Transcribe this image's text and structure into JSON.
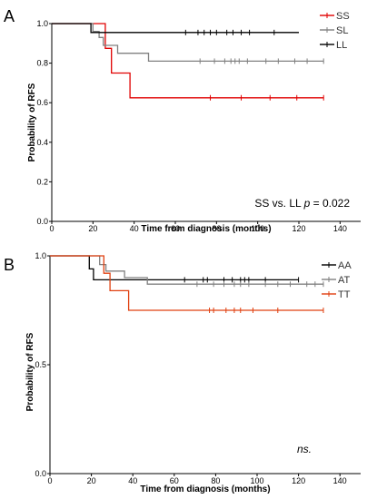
{
  "chart_data": [
    {
      "panel": "A",
      "type": "line",
      "xlabel": "Time from diagnosis (months)",
      "ylabel": "Probability of RFS",
      "xlim": [
        0,
        150
      ],
      "ylim": [
        0,
        1.0
      ],
      "xticks": [
        "0",
        "20",
        "40",
        "60",
        "80",
        "100",
        "120",
        "140"
      ],
      "yticks": [
        "0.0",
        "0.2",
        "0.4",
        "0.6",
        "0.8",
        "1.0"
      ],
      "legend_position": "top-right",
      "annotation_text": "SS vs. LL",
      "annotation_p": "p",
      "annotation_value": " = 0.022",
      "series": [
        {
          "name": "SS",
          "color": "#e00000",
          "steps": [
            [
              0,
              1.0
            ],
            [
              26,
              1.0
            ],
            [
              26,
              0.875
            ],
            [
              29,
              0.875
            ],
            [
              29,
              0.75
            ],
            [
              38,
              0.75
            ],
            [
              38,
              0.625
            ],
            [
              132,
              0.625
            ]
          ],
          "censor_x": [
            77,
            92,
            106,
            119,
            132
          ],
          "censor_y": 0.625
        },
        {
          "name": "SL",
          "color": "#808080",
          "steps": [
            [
              0,
              1.0
            ],
            [
              20,
              1.0
            ],
            [
              20,
              0.96
            ],
            [
              23,
              0.96
            ],
            [
              23,
              0.93
            ],
            [
              25,
              0.93
            ],
            [
              25,
              0.89
            ],
            [
              32,
              0.89
            ],
            [
              32,
              0.85
            ],
            [
              47,
              0.85
            ],
            [
              47,
              0.81
            ],
            [
              132,
              0.81
            ]
          ],
          "censor_x": [
            72,
            79,
            84,
            87,
            89,
            91,
            95,
            104,
            110,
            118,
            124,
            132
          ],
          "censor_y": 0.81
        },
        {
          "name": "LL",
          "color": "#000000",
          "steps": [
            [
              0,
              1.0
            ],
            [
              19,
              1.0
            ],
            [
              19,
              0.955
            ],
            [
              120,
              0.955
            ]
          ],
          "censor_x": [
            65,
            71,
            74,
            77,
            80,
            85,
            88,
            92,
            96,
            108
          ],
          "censor_y": 0.955
        }
      ]
    },
    {
      "panel": "B",
      "type": "line",
      "xlabel": "Time from diagnosis (months)",
      "ylabel": "Probability of RFS",
      "xlim": [
        0,
        150
      ],
      "ylim": [
        0,
        1.0
      ],
      "xticks": [
        "0",
        "20",
        "40",
        "60",
        "80",
        "100",
        "120",
        "140"
      ],
      "yticks": [
        "0.0",
        "0.5",
        "1.0"
      ],
      "legend_position": "top-right",
      "annotation_text": "ns.",
      "series": [
        {
          "name": "AA",
          "color": "#000000",
          "steps": [
            [
              0,
              1.0
            ],
            [
              19,
              1.0
            ],
            [
              19,
              0.94
            ],
            [
              21,
              0.94
            ],
            [
              21,
              0.89
            ],
            [
              120,
              0.89
            ]
          ],
          "censor_x": [
            65,
            74,
            76,
            84,
            88,
            92,
            94,
            96,
            104,
            120
          ],
          "censor_y": 0.89
        },
        {
          "name": "AT",
          "color": "#808080",
          "steps": [
            [
              0,
              1.0
            ],
            [
              24,
              1.0
            ],
            [
              24,
              0.96
            ],
            [
              27,
              0.96
            ],
            [
              27,
              0.93
            ],
            [
              36,
              0.93
            ],
            [
              36,
              0.9
            ],
            [
              47,
              0.9
            ],
            [
              47,
              0.87
            ],
            [
              132,
              0.87
            ]
          ],
          "censor_x": [
            71,
            79,
            84,
            89,
            92,
            96,
            104,
            110,
            116,
            124,
            128,
            132
          ],
          "censor_y": 0.87
        },
        {
          "name": "TT",
          "color": "#e04010",
          "steps": [
            [
              0,
              1.0
            ],
            [
              26,
              1.0
            ],
            [
              26,
              0.92
            ],
            [
              29,
              0.92
            ],
            [
              29,
              0.84
            ],
            [
              38,
              0.84
            ],
            [
              38,
              0.75
            ],
            [
              132,
              0.75
            ]
          ],
          "censor_x": [
            77,
            79,
            85,
            89,
            92,
            98,
            110,
            132
          ],
          "censor_y": 0.75
        }
      ]
    }
  ]
}
